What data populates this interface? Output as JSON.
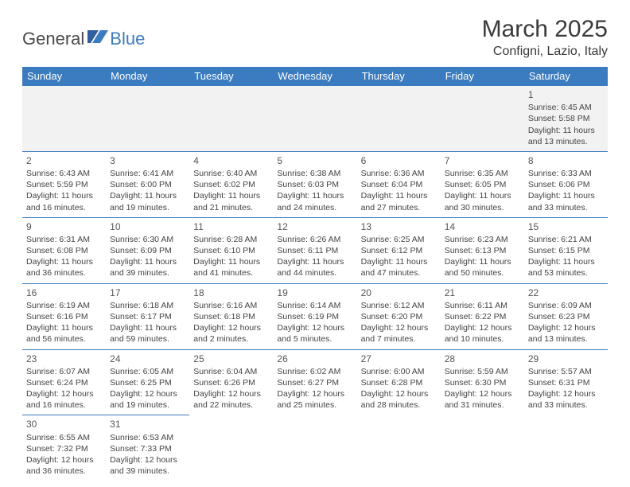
{
  "brand": {
    "part1": "General",
    "part2": "Blue"
  },
  "title": "March 2025",
  "location": "Configni, Lazio, Italy",
  "colors": {
    "header_bg": "#3b7bbf",
    "header_fg": "#ffffff",
    "grid_line": "#3b7bbf",
    "empty_bg": "#f2f2f2"
  },
  "weekdays": [
    "Sunday",
    "Monday",
    "Tuesday",
    "Wednesday",
    "Thursday",
    "Friday",
    "Saturday"
  ],
  "weeks": [
    [
      null,
      null,
      null,
      null,
      null,
      null,
      {
        "n": "1",
        "sunrise": "Sunrise: 6:45 AM",
        "sunset": "Sunset: 5:58 PM",
        "day1": "Daylight: 11 hours",
        "day2": "and 13 minutes."
      }
    ],
    [
      {
        "n": "2",
        "sunrise": "Sunrise: 6:43 AM",
        "sunset": "Sunset: 5:59 PM",
        "day1": "Daylight: 11 hours",
        "day2": "and 16 minutes."
      },
      {
        "n": "3",
        "sunrise": "Sunrise: 6:41 AM",
        "sunset": "Sunset: 6:00 PM",
        "day1": "Daylight: 11 hours",
        "day2": "and 19 minutes."
      },
      {
        "n": "4",
        "sunrise": "Sunrise: 6:40 AM",
        "sunset": "Sunset: 6:02 PM",
        "day1": "Daylight: 11 hours",
        "day2": "and 21 minutes."
      },
      {
        "n": "5",
        "sunrise": "Sunrise: 6:38 AM",
        "sunset": "Sunset: 6:03 PM",
        "day1": "Daylight: 11 hours",
        "day2": "and 24 minutes."
      },
      {
        "n": "6",
        "sunrise": "Sunrise: 6:36 AM",
        "sunset": "Sunset: 6:04 PM",
        "day1": "Daylight: 11 hours",
        "day2": "and 27 minutes."
      },
      {
        "n": "7",
        "sunrise": "Sunrise: 6:35 AM",
        "sunset": "Sunset: 6:05 PM",
        "day1": "Daylight: 11 hours",
        "day2": "and 30 minutes."
      },
      {
        "n": "8",
        "sunrise": "Sunrise: 6:33 AM",
        "sunset": "Sunset: 6:06 PM",
        "day1": "Daylight: 11 hours",
        "day2": "and 33 minutes."
      }
    ],
    [
      {
        "n": "9",
        "sunrise": "Sunrise: 6:31 AM",
        "sunset": "Sunset: 6:08 PM",
        "day1": "Daylight: 11 hours",
        "day2": "and 36 minutes."
      },
      {
        "n": "10",
        "sunrise": "Sunrise: 6:30 AM",
        "sunset": "Sunset: 6:09 PM",
        "day1": "Daylight: 11 hours",
        "day2": "and 39 minutes."
      },
      {
        "n": "11",
        "sunrise": "Sunrise: 6:28 AM",
        "sunset": "Sunset: 6:10 PM",
        "day1": "Daylight: 11 hours",
        "day2": "and 41 minutes."
      },
      {
        "n": "12",
        "sunrise": "Sunrise: 6:26 AM",
        "sunset": "Sunset: 6:11 PM",
        "day1": "Daylight: 11 hours",
        "day2": "and 44 minutes."
      },
      {
        "n": "13",
        "sunrise": "Sunrise: 6:25 AM",
        "sunset": "Sunset: 6:12 PM",
        "day1": "Daylight: 11 hours",
        "day2": "and 47 minutes."
      },
      {
        "n": "14",
        "sunrise": "Sunrise: 6:23 AM",
        "sunset": "Sunset: 6:13 PM",
        "day1": "Daylight: 11 hours",
        "day2": "and 50 minutes."
      },
      {
        "n": "15",
        "sunrise": "Sunrise: 6:21 AM",
        "sunset": "Sunset: 6:15 PM",
        "day1": "Daylight: 11 hours",
        "day2": "and 53 minutes."
      }
    ],
    [
      {
        "n": "16",
        "sunrise": "Sunrise: 6:19 AM",
        "sunset": "Sunset: 6:16 PM",
        "day1": "Daylight: 11 hours",
        "day2": "and 56 minutes."
      },
      {
        "n": "17",
        "sunrise": "Sunrise: 6:18 AM",
        "sunset": "Sunset: 6:17 PM",
        "day1": "Daylight: 11 hours",
        "day2": "and 59 minutes."
      },
      {
        "n": "18",
        "sunrise": "Sunrise: 6:16 AM",
        "sunset": "Sunset: 6:18 PM",
        "day1": "Daylight: 12 hours",
        "day2": "and 2 minutes."
      },
      {
        "n": "19",
        "sunrise": "Sunrise: 6:14 AM",
        "sunset": "Sunset: 6:19 PM",
        "day1": "Daylight: 12 hours",
        "day2": "and 5 minutes."
      },
      {
        "n": "20",
        "sunrise": "Sunrise: 6:12 AM",
        "sunset": "Sunset: 6:20 PM",
        "day1": "Daylight: 12 hours",
        "day2": "and 7 minutes."
      },
      {
        "n": "21",
        "sunrise": "Sunrise: 6:11 AM",
        "sunset": "Sunset: 6:22 PM",
        "day1": "Daylight: 12 hours",
        "day2": "and 10 minutes."
      },
      {
        "n": "22",
        "sunrise": "Sunrise: 6:09 AM",
        "sunset": "Sunset: 6:23 PM",
        "day1": "Daylight: 12 hours",
        "day2": "and 13 minutes."
      }
    ],
    [
      {
        "n": "23",
        "sunrise": "Sunrise: 6:07 AM",
        "sunset": "Sunset: 6:24 PM",
        "day1": "Daylight: 12 hours",
        "day2": "and 16 minutes."
      },
      {
        "n": "24",
        "sunrise": "Sunrise: 6:05 AM",
        "sunset": "Sunset: 6:25 PM",
        "day1": "Daylight: 12 hours",
        "day2": "and 19 minutes."
      },
      {
        "n": "25",
        "sunrise": "Sunrise: 6:04 AM",
        "sunset": "Sunset: 6:26 PM",
        "day1": "Daylight: 12 hours",
        "day2": "and 22 minutes."
      },
      {
        "n": "26",
        "sunrise": "Sunrise: 6:02 AM",
        "sunset": "Sunset: 6:27 PM",
        "day1": "Daylight: 12 hours",
        "day2": "and 25 minutes."
      },
      {
        "n": "27",
        "sunrise": "Sunrise: 6:00 AM",
        "sunset": "Sunset: 6:28 PM",
        "day1": "Daylight: 12 hours",
        "day2": "and 28 minutes."
      },
      {
        "n": "28",
        "sunrise": "Sunrise: 5:59 AM",
        "sunset": "Sunset: 6:30 PM",
        "day1": "Daylight: 12 hours",
        "day2": "and 31 minutes."
      },
      {
        "n": "29",
        "sunrise": "Sunrise: 5:57 AM",
        "sunset": "Sunset: 6:31 PM",
        "day1": "Daylight: 12 hours",
        "day2": "and 33 minutes."
      }
    ],
    [
      {
        "n": "30",
        "sunrise": "Sunrise: 6:55 AM",
        "sunset": "Sunset: 7:32 PM",
        "day1": "Daylight: 12 hours",
        "day2": "and 36 minutes."
      },
      {
        "n": "31",
        "sunrise": "Sunrise: 6:53 AM",
        "sunset": "Sunset: 7:33 PM",
        "day1": "Daylight: 12 hours",
        "day2": "and 39 minutes."
      },
      null,
      null,
      null,
      null,
      null
    ]
  ]
}
